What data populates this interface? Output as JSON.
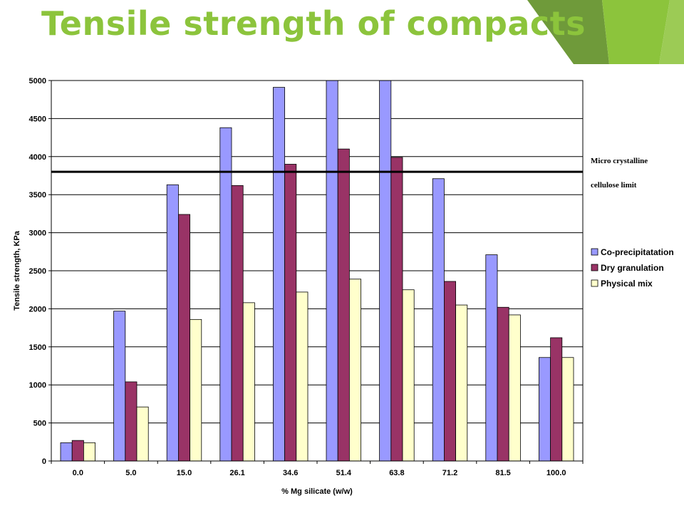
{
  "slide": {
    "title": "Tensile strength of compacts"
  },
  "colors": {
    "title": "#8cc43c",
    "deco_dark": "#6f9a3a",
    "deco_light": "#8cc43c",
    "series": [
      "#9999ff",
      "#993366",
      "#ffffcc"
    ]
  },
  "chart_data": {
    "type": "bar",
    "xlabel": "% Mg silicate (w/w)",
    "ylabel": "Tensile strength, KPa",
    "ylim": [
      0,
      5000
    ],
    "yticks": [
      "0",
      "500",
      "1000",
      "1500",
      "2000",
      "2500",
      "3000",
      "3500",
      "4000",
      "4500",
      "5000"
    ],
    "categories": [
      "0.0",
      "5.0",
      "15.0",
      "26.1",
      "34.6",
      "51.4",
      "63.8",
      "71.2",
      "81.5",
      "100.0"
    ],
    "series": [
      {
        "name": "Co-precipitatation",
        "values": [
          240,
          1970,
          3630,
          4380,
          4910,
          5000,
          5000,
          3710,
          2710,
          1360
        ]
      },
      {
        "name": "Dry granulation",
        "values": [
          270,
          1040,
          3240,
          3620,
          3900,
          4100,
          3990,
          2360,
          2020,
          1620
        ]
      },
      {
        "name": "Physical mix",
        "values": [
          240,
          710,
          1860,
          2080,
          2220,
          2390,
          2250,
          2050,
          1920,
          1360
        ]
      }
    ],
    "reference_line": {
      "value": 3800,
      "label_lines": [
        "Micro crystalline",
        "cellulose limit"
      ]
    },
    "legend_position": "right",
    "grid": true
  }
}
